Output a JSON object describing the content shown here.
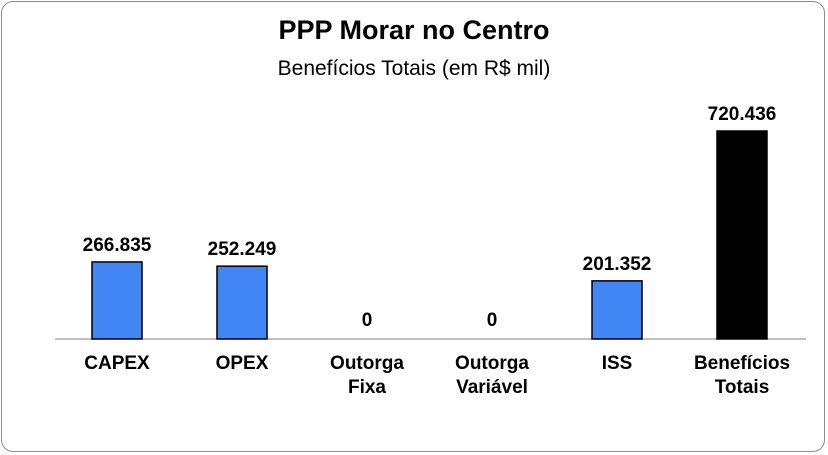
{
  "chart_data": {
    "type": "bar",
    "title": "PPP Morar no Centro",
    "subtitle": "Benefícios Totais  (em R$ mil)",
    "categories": [
      [
        "CAPEX"
      ],
      [
        "OPEX"
      ],
      [
        "Outorga",
        "Fixa"
      ],
      [
        "Outorga",
        "Variável"
      ],
      [
        "ISS"
      ],
      [
        "Benefícios",
        "Totais"
      ]
    ],
    "values": [
      266835,
      252249,
      0,
      0,
      201352,
      720436
    ],
    "value_labels": [
      "266.835",
      "252.249",
      "0",
      "0",
      "201.352",
      "720.436"
    ],
    "colors": [
      "#4285f4",
      "#4285f4",
      "#4285f4",
      "#4285f4",
      "#4285f4",
      "#000000"
    ],
    "ylim": [
      0,
      800000
    ],
    "grid": false,
    "legend": "none"
  }
}
